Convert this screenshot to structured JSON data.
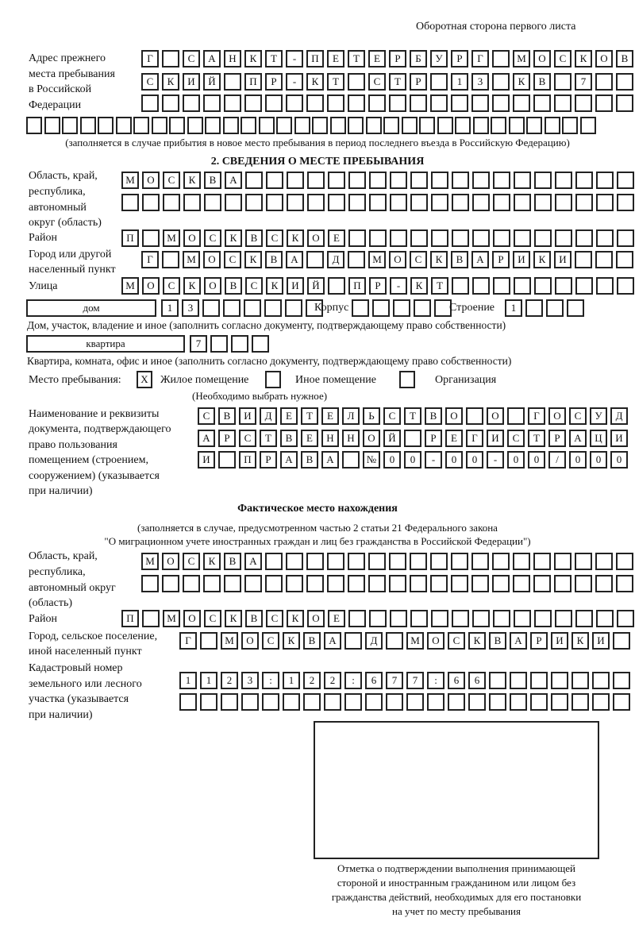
{
  "header": {
    "page_side": "Оборотная сторона первого листа"
  },
  "prev_address": {
    "label": [
      "Адрес прежнего",
      "места пребывания",
      "в Российской",
      "Федерации"
    ],
    "rows": [
      [
        "Г",
        "",
        "С",
        "А",
        "Н",
        "К",
        "Т",
        "-",
        "П",
        "Е",
        "Т",
        "Е",
        "Р",
        "Б",
        "У",
        "Р",
        "Г",
        "",
        "М",
        "О",
        "С",
        "К",
        "О",
        "В"
      ],
      [
        "С",
        "К",
        "И",
        "Й",
        "",
        "П",
        "Р",
        "-",
        "К",
        "Т",
        "",
        "С",
        "Т",
        "Р",
        "",
        "1",
        "3",
        "",
        "К",
        "В",
        "",
        "7",
        "",
        ""
      ],
      [
        "",
        "",
        "",
        "",
        "",
        "",
        "",
        "",
        "",
        "",
        "",
        "",
        "",
        "",
        "",
        "",
        "",
        "",
        "",
        "",
        "",
        "",
        "",
        ""
      ],
      [
        "",
        "",
        "",
        "",
        "",
        "",
        "",
        "",
        "",
        "",
        "",
        "",
        "",
        "",
        "",
        "",
        "",
        "",
        "",
        "",
        "",
        "",
        "",
        "",
        "",
        "",
        "",
        "",
        "",
        "",
        "",
        ""
      ]
    ],
    "note": "(заполняется в случае прибытия в новое место пребывания в период последнего въезда в Российскую Федерацию)"
  },
  "section2": {
    "title": "2. СВЕДЕНИЯ О МЕСТЕ ПРЕБЫВАНИЯ",
    "region_label": [
      "Область, край,",
      "республика,",
      "автономный",
      "округ (область)"
    ],
    "region_rows": [
      [
        "М",
        "О",
        "С",
        "К",
        "В",
        "А",
        "",
        "",
        "",
        "",
        "",
        "",
        "",
        "",
        "",
        "",
        "",
        "",
        "",
        "",
        "",
        "",
        "",
        "",
        ""
      ],
      [
        "",
        "",
        "",
        "",
        "",
        "",
        "",
        "",
        "",
        "",
        "",
        "",
        "",
        "",
        "",
        "",
        "",
        "",
        "",
        "",
        "",
        "",
        "",
        "",
        ""
      ]
    ],
    "district_label": "Район",
    "district_row": [
      "П",
      "",
      "М",
      "О",
      "С",
      "К",
      "В",
      "С",
      "К",
      "О",
      "Е",
      "",
      "",
      "",
      "",
      "",
      "",
      "",
      "",
      "",
      "",
      "",
      "",
      "",
      ""
    ],
    "city_label": [
      "Город или другой",
      "населенный пункт"
    ],
    "city_row": [
      "Г",
      "",
      "М",
      "О",
      "С",
      "К",
      "В",
      "А",
      "",
      "Д",
      "",
      "М",
      "О",
      "С",
      "К",
      "В",
      "А",
      "Р",
      "И",
      "К",
      "И",
      "",
      "",
      ""
    ],
    "street_label": "Улица",
    "street_row": [
      "М",
      "О",
      "С",
      "К",
      "О",
      "В",
      "С",
      "К",
      "И",
      "Й",
      "",
      "П",
      "Р",
      "-",
      "К",
      "Т",
      "",
      "",
      "",
      "",
      "",
      "",
      "",
      "",
      ""
    ],
    "house_type": "дом",
    "house_row": [
      "1",
      "3",
      "",
      "",
      "",
      "",
      "",
      ""
    ],
    "building_label": "Корпус",
    "building_row": [
      "",
      "",
      "",
      "",
      ""
    ],
    "structure_label": "Строение",
    "structure_row": [
      "1",
      "",
      "",
      ""
    ],
    "house_note": "Дом, участок, владение и иное (заполнить согласно документу, подтверждающему право собственности)",
    "apartment_type": "квартира",
    "apartment_row": [
      "7",
      "",
      "",
      ""
    ],
    "apartment_note": "Квартира, комната, офис и иное (заполнить согласно документу, подтверждающему право собственности)",
    "place_label": "Место пребывания:",
    "place_options": [
      {
        "label": "Жилое помещение",
        "mark": "X"
      },
      {
        "label": "Иное помещение",
        "mark": ""
      },
      {
        "label": "Организация",
        "mark": ""
      }
    ],
    "place_note": "(Необходимо выбрать нужное)",
    "doc_label": [
      "Наименование и реквизиты",
      "документа, подтверждающего",
      "право пользования",
      "помещением (строением,",
      "сооружением) (указывается",
      "при наличии)"
    ],
    "doc_rows": [
      [
        "С",
        "В",
        "И",
        "Д",
        "Е",
        "Т",
        "Е",
        "Л",
        "Ь",
        "С",
        "Т",
        "В",
        "О",
        "",
        "О",
        "",
        "Г",
        "О",
        "С",
        "У",
        "Д"
      ],
      [
        "А",
        "Р",
        "С",
        "Т",
        "В",
        "Е",
        "Н",
        "Н",
        "О",
        "Й",
        "",
        "Р",
        "Е",
        "Г",
        "И",
        "С",
        "Т",
        "Р",
        "А",
        "Ц",
        "И"
      ],
      [
        "И",
        "",
        "П",
        "Р",
        "А",
        "В",
        "А",
        "",
        "№",
        "0",
        "0",
        "-",
        "0",
        "0",
        "-",
        "0",
        "0",
        "/",
        "0",
        "0",
        "0"
      ]
    ]
  },
  "actual": {
    "title": "Фактическое место нахождения",
    "note": [
      "(заполняется в случае, предусмотренном частью 2 статьи 21 Федерального закона",
      "\"О миграционном учете иностранных граждан и лиц без гражданства в Российской Федерации\")"
    ],
    "region_label": [
      "Область, край,",
      "республика,",
      "автономный округ",
      "(область)"
    ],
    "region_rows": [
      [
        "М",
        "О",
        "С",
        "К",
        "В",
        "А",
        "",
        "",
        "",
        "",
        "",
        "",
        "",
        "",
        "",
        "",
        "",
        "",
        "",
        "",
        "",
        "",
        "",
        ""
      ],
      [
        "",
        "",
        "",
        "",
        "",
        "",
        "",
        "",
        "",
        "",
        "",
        "",
        "",
        "",
        "",
        "",
        "",
        "",
        "",
        "",
        "",
        "",
        "",
        ""
      ]
    ],
    "district_label": "Район",
    "district_row": [
      "П",
      "",
      "М",
      "О",
      "С",
      "К",
      "В",
      "С",
      "К",
      "О",
      "Е",
      "",
      "",
      "",
      "",
      "",
      "",
      "",
      "",
      "",
      "",
      "",
      "",
      "",
      ""
    ],
    "city_label": [
      "Город, сельское поселение,",
      "иной населенный пункт"
    ],
    "city_row": [
      "Г",
      "",
      "М",
      "О",
      "С",
      "К",
      "В",
      "А",
      "",
      "Д",
      "",
      "М",
      "О",
      "С",
      "К",
      "В",
      "А",
      "Р",
      "И",
      "К",
      "И",
      ""
    ],
    "cadastral_label": [
      "Кадастровый номер",
      "земельного или лесного",
      "участка (указывается",
      "при наличии)"
    ],
    "cadastral_rows": [
      [
        "1",
        "1",
        "2",
        "3",
        ":",
        "1",
        "2",
        "2",
        ":",
        "6",
        "7",
        "7",
        ":",
        "6",
        "6",
        "",
        "",
        "",
        "",
        "",
        "",
        ""
      ],
      [
        "",
        "",
        "",
        "",
        "",
        "",
        "",
        "",
        "",
        "",
        "",
        "",
        "",
        "",
        "",
        "",
        "",
        "",
        "",
        "",
        "",
        ""
      ]
    ]
  },
  "stamp": {
    "caption": [
      "Отметка о подтверждении выполнения принимающей",
      "стороной и иностранным гражданином или лицом без",
      "гражданства действий, необходимых для его постановки",
      "на учет по месту пребывания"
    ]
  }
}
